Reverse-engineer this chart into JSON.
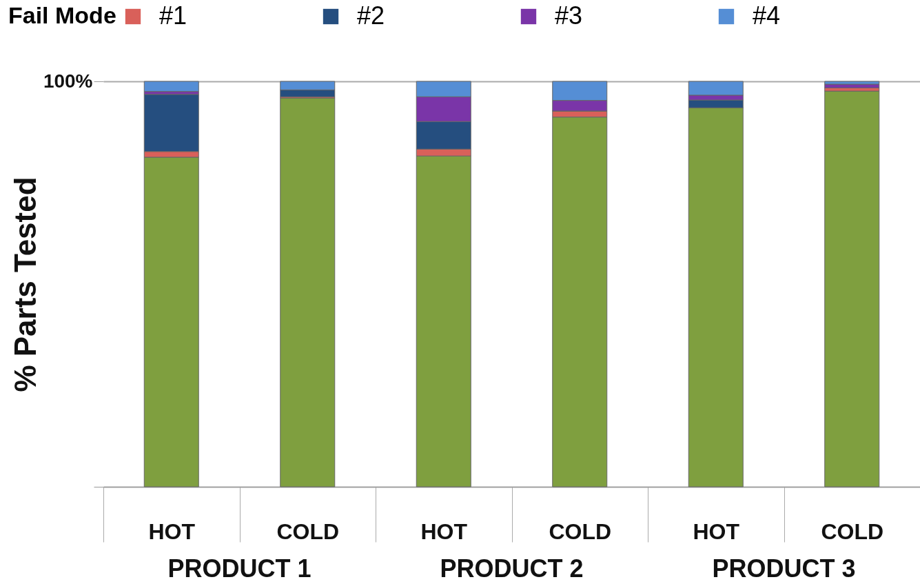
{
  "chart_data": {
    "type": "bar",
    "stacked": true,
    "ylabel": "% Parts Tested",
    "legend_title": "Fail Mode",
    "legend": "top left",
    "grid": "y",
    "categories": [
      "HOT",
      "COLD",
      "HOT",
      "COLD",
      "HOT",
      "COLD"
    ],
    "annotations": [
      "PRODUCT 1",
      "PRODUCT 2",
      "PRODUCT 3"
    ],
    "ylim": [
      0,
      100
    ],
    "yticks": [
      {
        "value": 0,
        "label": null
      },
      {
        "value": 100,
        "label": "100%"
      }
    ],
    "series": [
      {
        "color": "#7f9f3f",
        "values": [
          81.3,
          95.9,
          81.6,
          91.2,
          93.5,
          97.6
        ]
      },
      {
        "name": "#1",
        "color": "#d9605a",
        "values": [
          1.4,
          0.3,
          1.7,
          1.5,
          0,
          0.8
        ]
      },
      {
        "name": "#2",
        "color": "#254e7f",
        "values": [
          14.1,
          1.7,
          6.8,
          0,
          1.9,
          0
        ]
      },
      {
        "name": "#3",
        "color": "#7a35a8",
        "values": [
          0.7,
          0,
          6.1,
          2.6,
          1.2,
          0.9
        ]
      },
      {
        "name": "#4",
        "color": "#558ed5",
        "values": [
          2.5,
          2.1,
          3.8,
          4.7,
          3.4,
          0.7
        ]
      }
    ]
  }
}
